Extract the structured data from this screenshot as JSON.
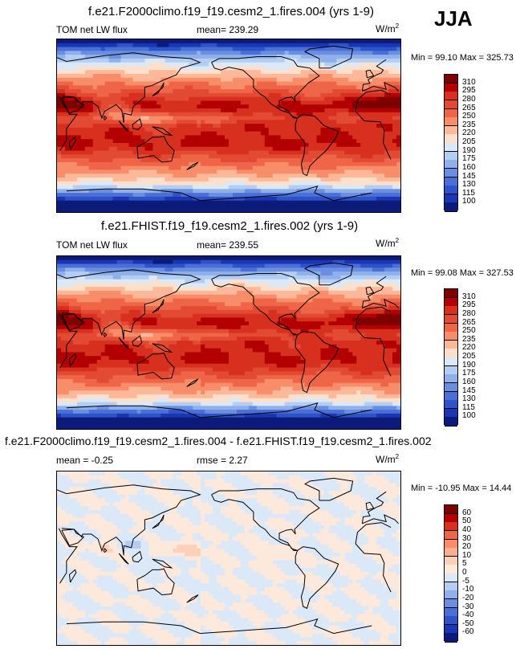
{
  "season": "JJA",
  "panels": [
    {
      "title": "f.e21.F2000climo.f19_f19.cesm2_1.fires.004 (yrs 1-9)",
      "left_label": "TOM net LW flux",
      "center_label": "mean= 239.29",
      "units": "W/m",
      "units_sup": "2",
      "minmax": "Min =  99.10 Max = 325.73",
      "colorbar": {
        "levels": [
          "310",
          "295",
          "280",
          "265",
          "250",
          "235",
          "220",
          "205",
          "190",
          "175",
          "160",
          "145",
          "130",
          "115",
          "100"
        ],
        "colors": [
          "#7f0000",
          "#b30000",
          "#d7301f",
          "#e34a33",
          "#ef6548",
          "#f88d69",
          "#fdb89a",
          "#fde0cc",
          "#dbe8f8",
          "#b3cdf3",
          "#8fb0eb",
          "#6a8fe0",
          "#4a6fd6",
          "#2e52c8",
          "#1b36b5",
          "#0c1a7a"
        ]
      },
      "field": "lw"
    },
    {
      "title": "f.e21.FHIST.f19_f19.cesm2_1.fires.002 (yrs 1-9)",
      "left_label": "TOM net LW flux",
      "center_label": "mean= 239.55",
      "units": "W/m",
      "units_sup": "2",
      "minmax": "Min =  99.08 Max = 327.53",
      "colorbar": {
        "levels": [
          "310",
          "295",
          "280",
          "265",
          "250",
          "235",
          "220",
          "205",
          "190",
          "175",
          "160",
          "145",
          "130",
          "115",
          "100"
        ],
        "colors": [
          "#7f0000",
          "#b30000",
          "#d7301f",
          "#e34a33",
          "#ef6548",
          "#f88d69",
          "#fdb89a",
          "#fde0cc",
          "#dbe8f8",
          "#b3cdf3",
          "#8fb0eb",
          "#6a8fe0",
          "#4a6fd6",
          "#2e52c8",
          "#1b36b5",
          "#0c1a7a"
        ]
      },
      "field": "lw"
    },
    {
      "title": "f.e21.F2000climo.f19_f19.cesm2_1.fires.004 - f.e21.FHIST.f19_f19.cesm2_1.fires.002",
      "left_label": "mean =  -0.25",
      "center_label": "rmse =   2.27",
      "units": "W/m",
      "units_sup": "2",
      "minmax": "Min = -10.95 Max =  14.44",
      "colorbar": {
        "levels": [
          "60",
          "50",
          "40",
          "30",
          "20",
          "10",
          "5",
          "0",
          "-5",
          "-10",
          "-20",
          "-30",
          "-40",
          "-50",
          "-60"
        ],
        "colors": [
          "#7f0000",
          "#b30000",
          "#d7301f",
          "#ef6548",
          "#f88d69",
          "#fcae91",
          "#fdd0b8",
          "#fde9dc",
          "#dbe8f8",
          "#b3cdf3",
          "#8fb0eb",
          "#6a8fe0",
          "#4a6fd6",
          "#2e52c8",
          "#1b36b5",
          "#0c1a7a"
        ]
      },
      "field": "diff"
    }
  ],
  "chart_data": [
    {
      "type": "heatmap",
      "title": "f.e21.F2000climo.f19_f19.cesm2_1.fires.004 (yrs 1-9)",
      "variable": "TOM net LW flux",
      "units": "W/m2",
      "mean": 239.29,
      "min": 99.1,
      "max": 325.73,
      "contour_levels": [
        100,
        115,
        130,
        145,
        160,
        175,
        190,
        205,
        220,
        235,
        250,
        265,
        280,
        295,
        310
      ]
    },
    {
      "type": "heatmap",
      "title": "f.e21.FHIST.f19_f19.cesm2_1.fires.002 (yrs 1-9)",
      "variable": "TOM net LW flux",
      "units": "W/m2",
      "mean": 239.55,
      "min": 99.08,
      "max": 327.53,
      "contour_levels": [
        100,
        115,
        130,
        145,
        160,
        175,
        190,
        205,
        220,
        235,
        250,
        265,
        280,
        295,
        310
      ]
    },
    {
      "type": "heatmap",
      "title": "f.e21.F2000climo.f19_f19.cesm2_1.fires.004 - f.e21.FHIST.f19_f19.cesm2_1.fires.002",
      "units": "W/m2",
      "mean": -0.25,
      "rmse": 2.27,
      "min": -10.95,
      "max": 14.44,
      "contour_levels": [
        -60,
        -50,
        -40,
        -30,
        -20,
        -10,
        -5,
        0,
        5,
        10,
        20,
        30,
        40,
        50,
        60
      ]
    }
  ]
}
